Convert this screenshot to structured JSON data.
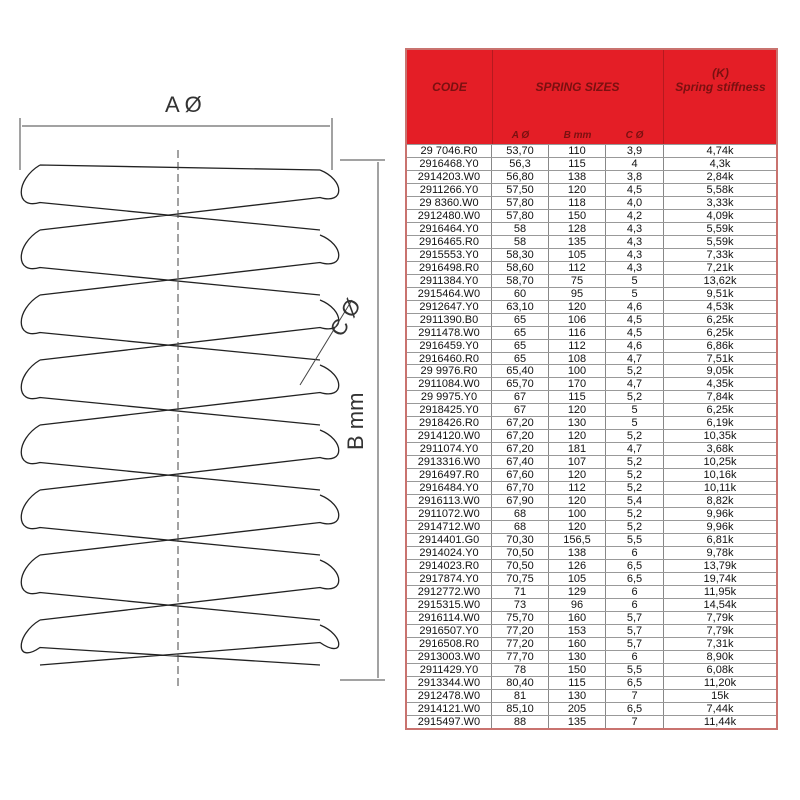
{
  "labels": {
    "a": "A Ø",
    "b": "B mm",
    "c": "C Ø"
  },
  "table": {
    "header": {
      "code": "CODE",
      "sizes": "SPRING SIZES",
      "k": "(K)",
      "stiffness": "Spring stiffness",
      "a": "A Ø",
      "b": "B mm",
      "c": "C Ø"
    },
    "rows": [
      [
        "29 7046.R0",
        "53,70",
        "110",
        "3,9",
        "4,74k"
      ],
      [
        "2916468.Y0",
        "56,3",
        "115",
        "4",
        "4,3k"
      ],
      [
        "2914203.W0",
        "56,80",
        "138",
        "3,8",
        "2,84k"
      ],
      [
        "2911266.Y0",
        "57,50",
        "120",
        "4,5",
        "5,58k"
      ],
      [
        "29 8360.W0",
        "57,80",
        "118",
        "4,0",
        "3,33k"
      ],
      [
        "2912480.W0",
        "57,80",
        "150",
        "4,2",
        "4,09k"
      ],
      [
        "2916464.Y0",
        "58",
        "128",
        "4,3",
        "5,59k"
      ],
      [
        "2916465.R0",
        "58",
        "135",
        "4,3",
        "5,59k"
      ],
      [
        "2915553.Y0",
        "58,30",
        "105",
        "4,3",
        "7,33k"
      ],
      [
        "2916498.R0",
        "58,60",
        "112",
        "4,3",
        "7,21k"
      ],
      [
        "2911384.Y0",
        "58,70",
        "75",
        "5",
        "13,62k"
      ],
      [
        "2915464.W0",
        "60",
        "95",
        "5",
        "9,51k"
      ],
      [
        "2912647.Y0",
        "63,10",
        "120",
        "4,6",
        "4,53k"
      ],
      [
        "2911390.B0",
        "65",
        "106",
        "4,5",
        "6,25k"
      ],
      [
        "2911478.W0",
        "65",
        "116",
        "4,5",
        "6,25k"
      ],
      [
        "2916459.Y0",
        "65",
        "112",
        "4,6",
        "6,86k"
      ],
      [
        "2916460.R0",
        "65",
        "108",
        "4,7",
        "7,51k"
      ],
      [
        "29 9976.R0",
        "65,40",
        "100",
        "5,2",
        "9,05k"
      ],
      [
        "2911084.W0",
        "65,70",
        "170",
        "4,7",
        "4,35k"
      ],
      [
        "29 9975.Y0",
        "67",
        "115",
        "5,2",
        "7,84k"
      ],
      [
        "2918425.Y0",
        "67",
        "120",
        "5",
        "6,25k"
      ],
      [
        "2918426.R0",
        "67,20",
        "130",
        "5",
        "6,19k"
      ],
      [
        "2914120.W0",
        "67,20",
        "120",
        "5,2",
        "10,35k"
      ],
      [
        "2911074.Y0",
        "67,20",
        "181",
        "4,7",
        "3,68k"
      ],
      [
        "2913316.W0",
        "67,40",
        "107",
        "5,2",
        "10,25k"
      ],
      [
        "2916497.R0",
        "67,60",
        "120",
        "5,2",
        "10,16k"
      ],
      [
        "2916484.Y0",
        "67,70",
        "112",
        "5,2",
        "10,11k"
      ],
      [
        "2916113.W0",
        "67,90",
        "120",
        "5,4",
        "8,82k"
      ],
      [
        "2911072.W0",
        "68",
        "100",
        "5,2",
        "9,96k"
      ],
      [
        "2914712.W0",
        "68",
        "120",
        "5,2",
        "9,96k"
      ],
      [
        "2914401.G0",
        "70,30",
        "156,5",
        "5,5",
        "6,81k"
      ],
      [
        "2914024.Y0",
        "70,50",
        "138",
        "6",
        "9,78k"
      ],
      [
        "2914023.R0",
        "70,50",
        "126",
        "6,5",
        "13,79k"
      ],
      [
        "2917874.Y0",
        "70,75",
        "105",
        "6,5",
        "19,74k"
      ],
      [
        "2912772.W0",
        "71",
        "129",
        "6",
        "11,95k"
      ],
      [
        "2915315.W0",
        "73",
        "96",
        "6",
        "14,54k"
      ],
      [
        "2916114.W0",
        "75,70",
        "160",
        "5,7",
        "7,79k"
      ],
      [
        "2916507.Y0",
        "77,20",
        "153",
        "5,7",
        "7,79k"
      ],
      [
        "2916508.R0",
        "77,20",
        "160",
        "5,7",
        "7,31k"
      ],
      [
        "2913003.W0",
        "77,70",
        "130",
        "6",
        "8,90k"
      ],
      [
        "2911429.Y0",
        "78",
        "150",
        "5,5",
        "6,08k"
      ],
      [
        "2913344.W0",
        "80,40",
        "115",
        "6,5",
        "11,20k"
      ],
      [
        "2912478.W0",
        "81",
        "130",
        "7",
        "15k"
      ],
      [
        "2914121.W0",
        "85,10",
        "205",
        "6,5",
        "7,44k"
      ],
      [
        "2915497.W0",
        "88",
        "135",
        "7",
        "11,44k"
      ]
    ]
  },
  "colors": {
    "header": "#e41e26",
    "header_text": "#7a1010"
  }
}
